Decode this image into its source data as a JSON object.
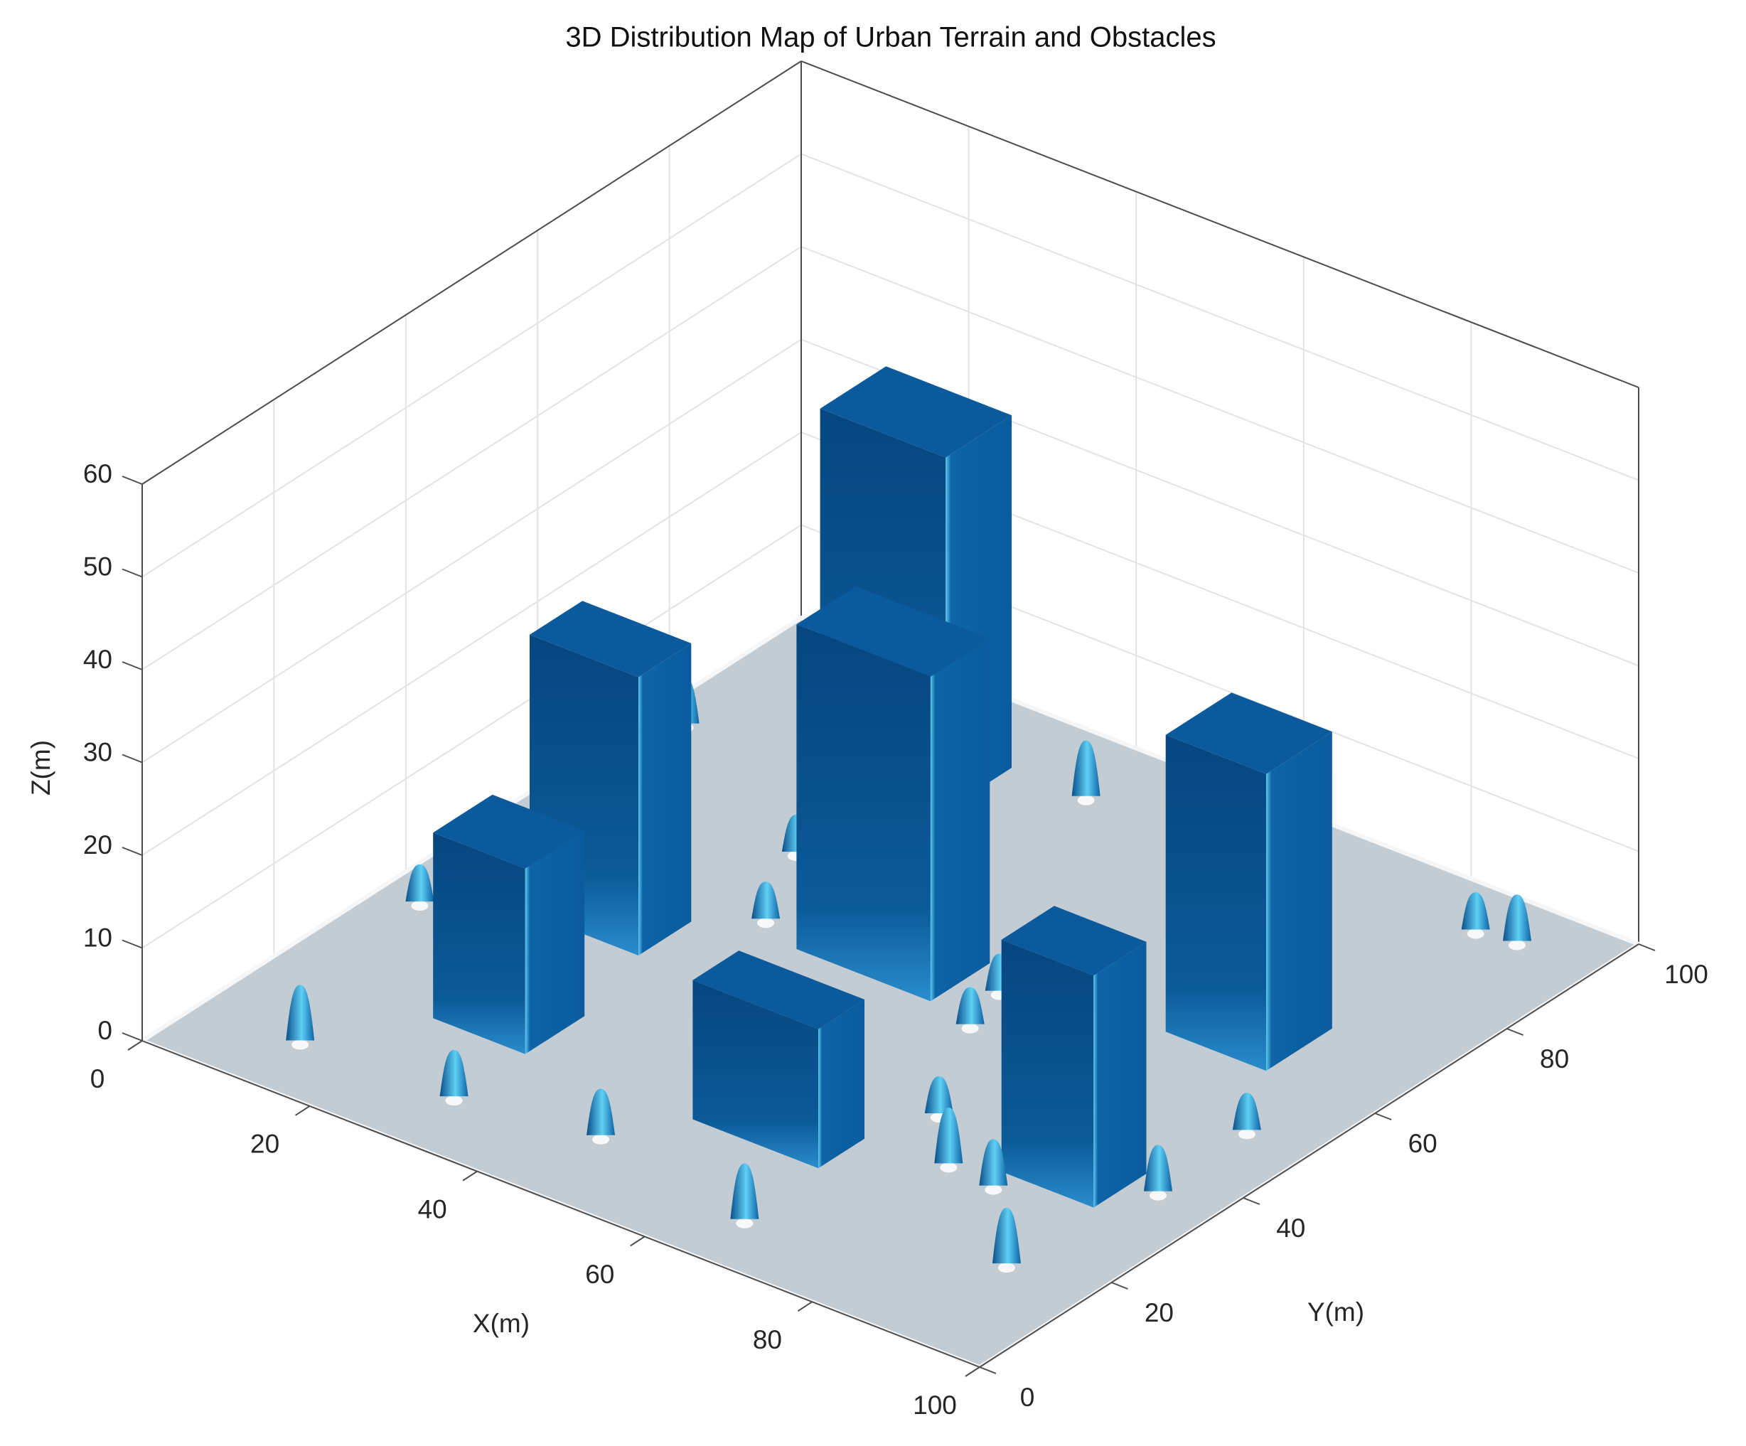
{
  "chart_data": {
    "type": "surface3d",
    "title": "3D Distribution Map of Urban Terrain and Obstacles",
    "xlabel": "X(m)",
    "ylabel": "Y(m)",
    "zlabel": "Z(m)",
    "xlim": [
      0,
      100
    ],
    "ylim": [
      0,
      100
    ],
    "zlim": [
      0,
      60
    ],
    "xticks": [
      0,
      20,
      40,
      60,
      80,
      100
    ],
    "yticks": [
      0,
      20,
      40,
      60,
      80,
      100
    ],
    "zticks": [
      0,
      10,
      20,
      30,
      40,
      50,
      60
    ],
    "grid": true,
    "color": "#0a5a9c",
    "floor_color": "#c4ccd3",
    "buildings": [
      {
        "x": [
          14,
          27
        ],
        "y": [
          41,
          49
        ],
        "height": 30
      },
      {
        "x": [
          19,
          30
        ],
        "y": [
          20,
          29
        ],
        "height": 20
      },
      {
        "x": [
          38,
          54
        ],
        "y": [
          51,
          60
        ],
        "height": 35
      },
      {
        "x": [
          18,
          33
        ],
        "y": [
          80,
          90
        ],
        "height": 38
      },
      {
        "x": [
          75,
          87
        ],
        "y": [
          60,
          70
        ],
        "height": 32
      },
      {
        "x": [
          50,
          65
        ],
        "y": [
          20,
          27
        ],
        "height": 15
      },
      {
        "x": [
          79,
          90
        ],
        "y": [
          30,
          38
        ],
        "height": 25
      }
    ],
    "cones": [
      {
        "x": 11.7,
        "y": 9.1,
        "height": 6
      },
      {
        "x": 29.6,
        "y": 9.7,
        "height": 5
      },
      {
        "x": 45,
        "y": 12.4,
        "height": 5
      },
      {
        "x": 65.4,
        "y": 8.3,
        "height": 6
      },
      {
        "x": 90,
        "y": 16.8,
        "height": 6
      },
      {
        "x": 80,
        "y": 27.5,
        "height": 5
      },
      {
        "x": 74.1,
        "y": 28.2,
        "height": 6
      },
      {
        "x": 67.6,
        "y": 35,
        "height": 4
      },
      {
        "x": 92.9,
        "y": 36.1,
        "height": 5
      },
      {
        "x": 92.4,
        "y": 50.2,
        "height": 4
      },
      {
        "x": 57.9,
        "y": 56.5,
        "height": 4
      },
      {
        "x": 59.6,
        "y": 49.9,
        "height": 4
      },
      {
        "x": 32.2,
        "y": 53.7,
        "height": 4
      },
      {
        "x": 4.5,
        "y": 36.4,
        "height": 4
      },
      {
        "x": 41.8,
        "y": 90.1,
        "height": 6
      },
      {
        "x": 86.2,
        "y": 92.8,
        "height": 4
      },
      {
        "x": 90.6,
        "y": 93.5,
        "height": 5
      },
      {
        "x": 3.6,
        "y": 77.8,
        "height": 5
      },
      {
        "x": 26.7,
        "y": 65.3,
        "height": 4
      }
    ]
  }
}
